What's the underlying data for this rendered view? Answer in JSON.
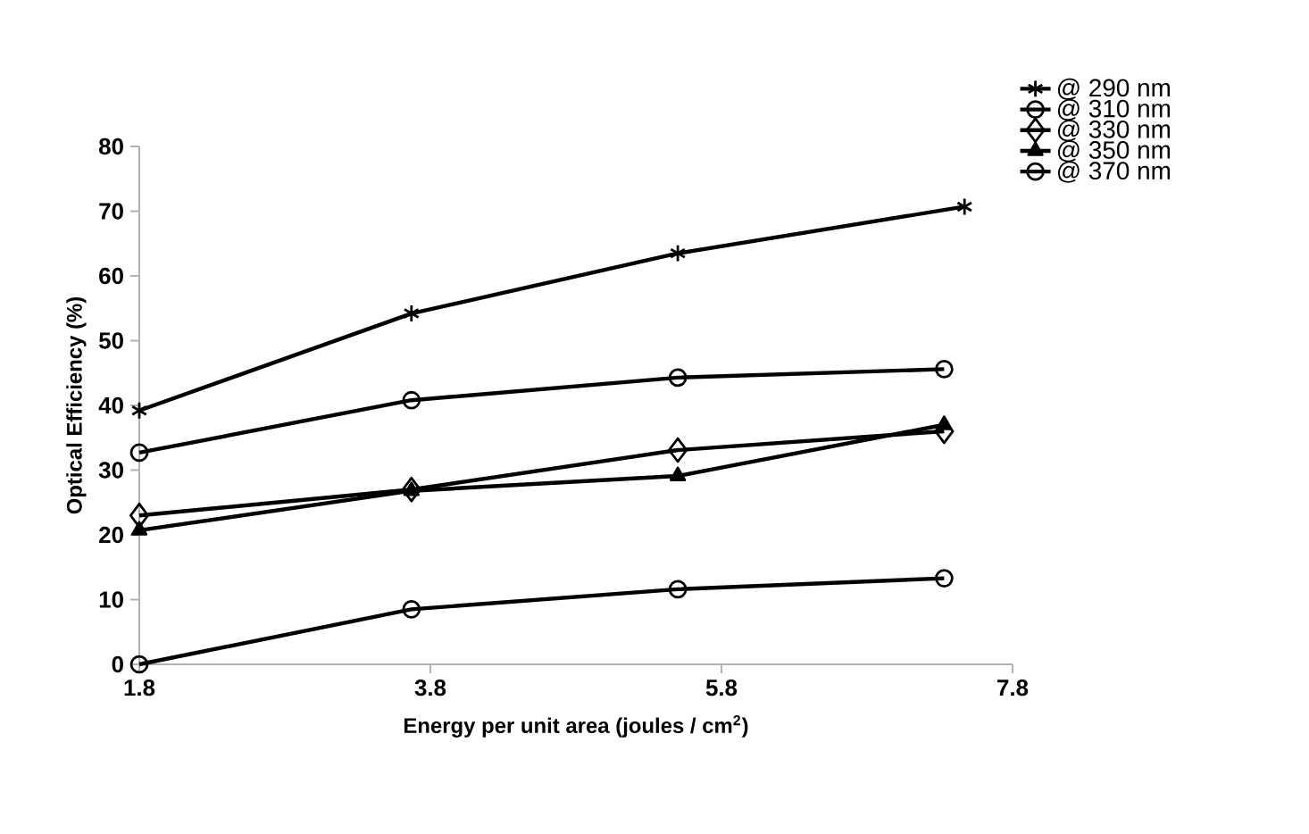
{
  "chart_data": {
    "type": "line",
    "xlabel": "Energy per unit area (joules / cm$^{2}$)",
    "ylabel": "Optical Efficiency (%)",
    "x": [
      1.8,
      3.67,
      5.5,
      7.33
    ],
    "series": [
      {
        "name": "@ 290 nm",
        "color": "#000000",
        "marker": "cross",
        "x": [
          1.8,
          3.67,
          5.5,
          7.47
        ],
        "values": [
          39.2,
          54.2,
          63.5,
          70.7
        ]
      },
      {
        "name": "@ 310 nm",
        "color": "#000000",
        "marker": "circle",
        "values": [
          32.7,
          40.8,
          44.3,
          45.6
        ]
      },
      {
        "name": "@ 330 nm",
        "color": "#000000",
        "marker": "diamond",
        "values": [
          23.0,
          27.0,
          33.1,
          36.0
        ]
      },
      {
        "name": "@ 350 nm",
        "color": "#000000",
        "marker": "triangle",
        "values": [
          20.7,
          26.8,
          29.1,
          37.0
        ]
      },
      {
        "name": "@ 370 nm",
        "color": "#000000",
        "marker": "circle",
        "values": [
          0,
          8.5,
          11.6,
          13.3
        ]
      }
    ],
    "xlim": [
      1.8,
      7.8
    ],
    "ylim": [
      0,
      80
    ],
    "xticks": [
      1.8,
      3.8,
      5.8,
      7.8
    ],
    "yticks": [
      0,
      10,
      20,
      30,
      40,
      50,
      60,
      70,
      80
    ],
    "grid": false,
    "legend": "top right",
    "line_style": "solid"
  }
}
